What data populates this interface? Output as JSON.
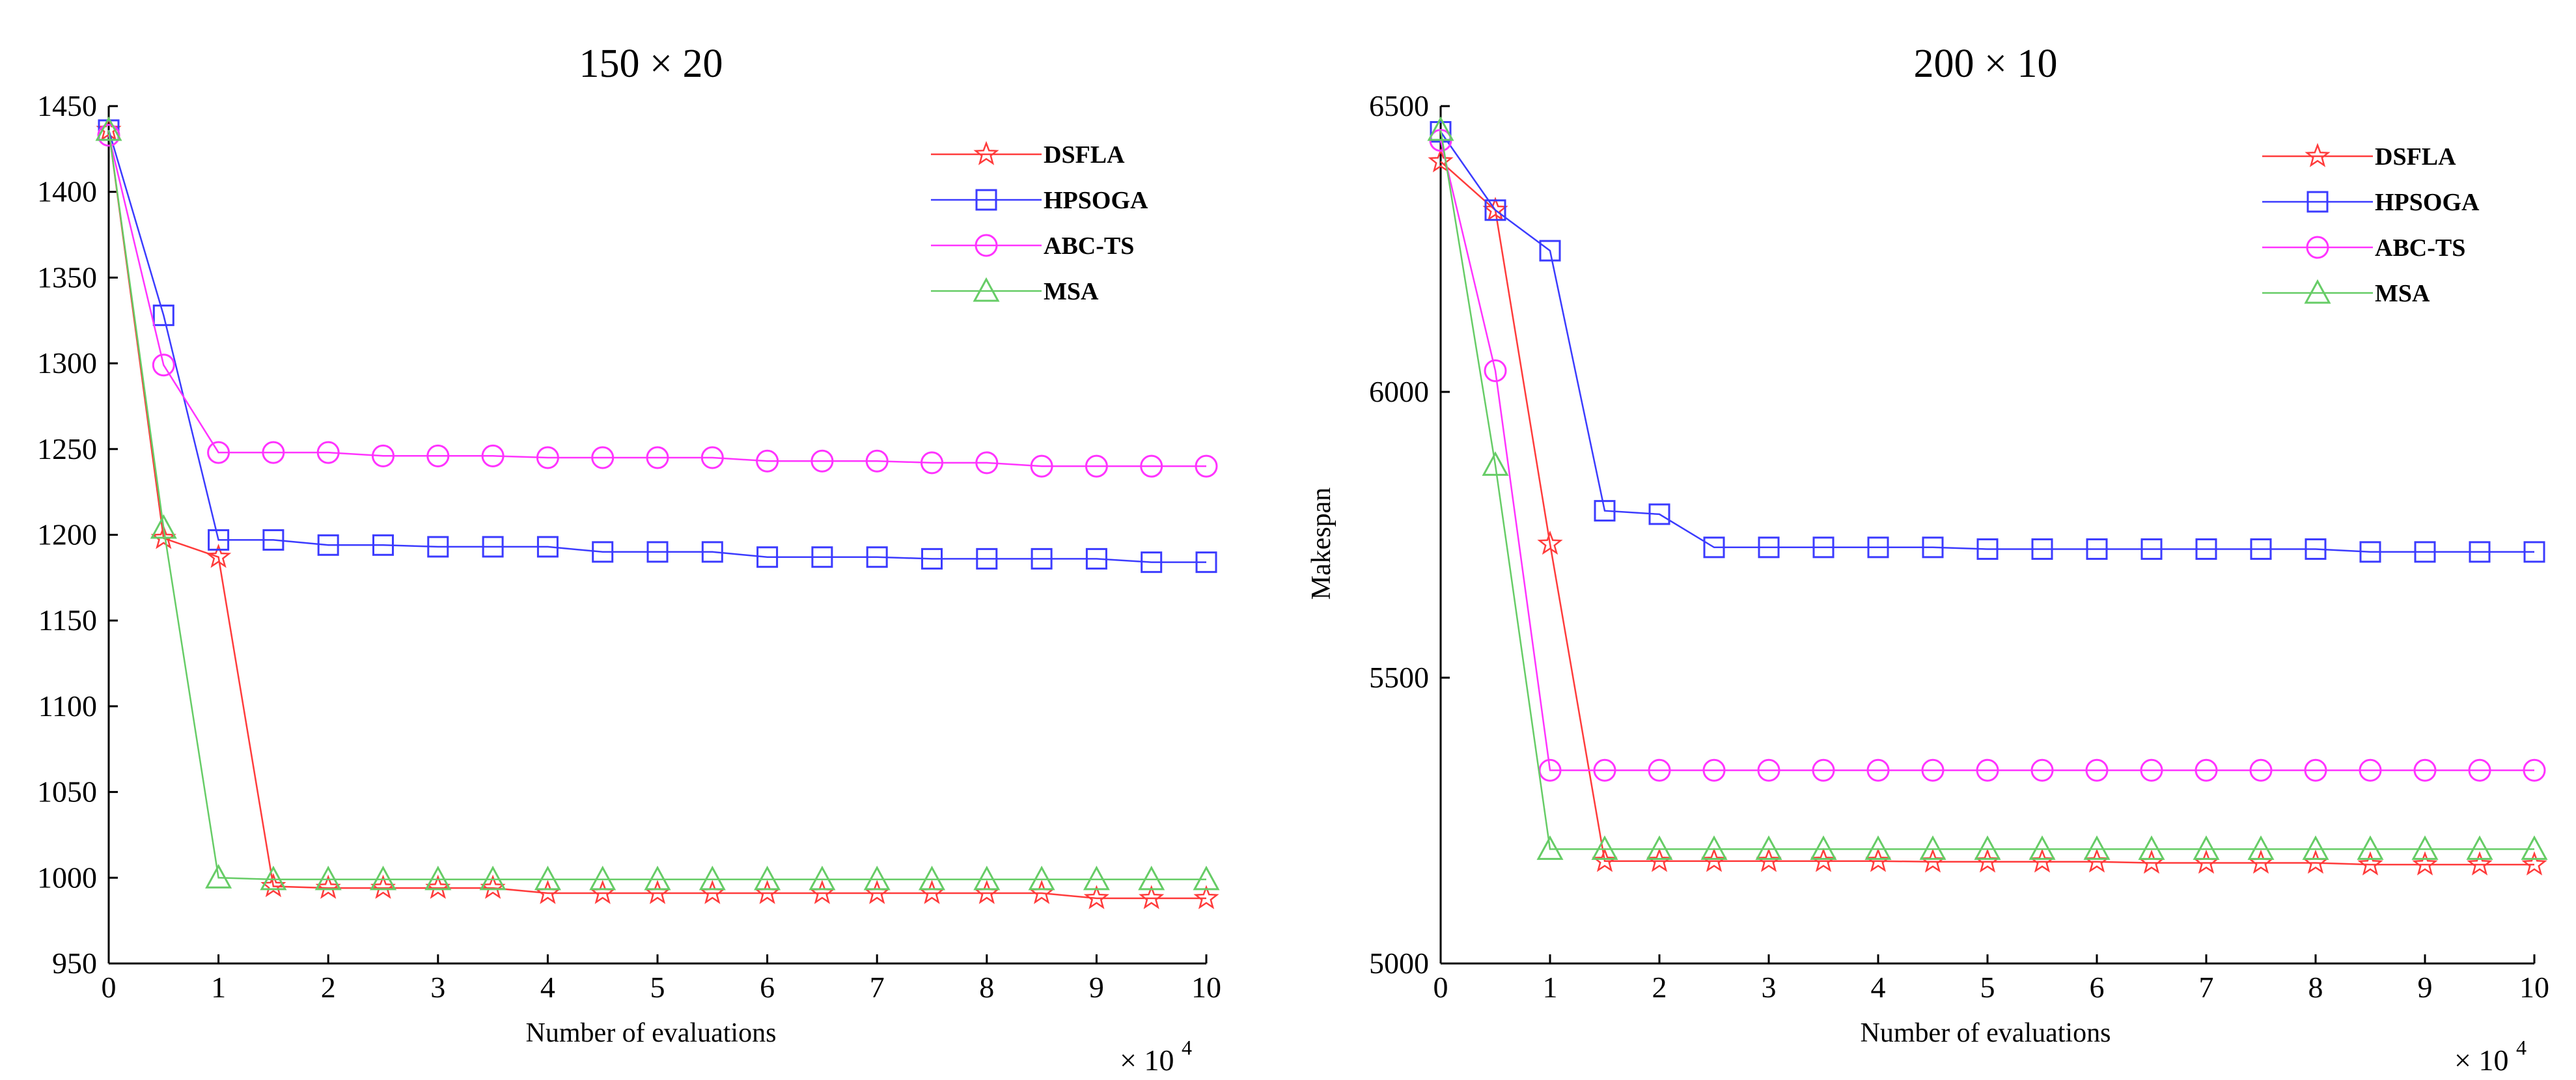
{
  "chart_data": [
    {
      "type": "line",
      "title": "150 × 20",
      "xlabel": "Number of evaluations",
      "ylabel": "",
      "x_multiplier": "× 10",
      "x_multiplier_exp": "4",
      "xlim": [
        0,
        10
      ],
      "ylim": [
        950,
        1450
      ],
      "xticks": [
        "0",
        "1",
        "2",
        "3",
        "4",
        "5",
        "6",
        "7",
        "8",
        "9",
        "10"
      ],
      "yticks": [
        "950",
        "1000",
        "1050",
        "1100",
        "1150",
        "1200",
        "1250",
        "1300",
        "1350",
        "1400",
        "1450"
      ],
      "x": [
        0,
        0.5,
        1,
        1.5,
        2,
        2.5,
        3,
        3.5,
        4,
        4.5,
        5,
        5.5,
        6,
        6.5,
        7,
        7.5,
        8,
        8.5,
        9,
        9.5,
        10
      ],
      "legend_position": "top-right",
      "series": [
        {
          "name": "DSFLA",
          "color": "#ff3b3b",
          "marker": "star",
          "values": [
            1436,
            1198,
            1187,
            995,
            994,
            994,
            994,
            994,
            991,
            991,
            991,
            991,
            991,
            991,
            991,
            991,
            991,
            991,
            988,
            988,
            988
          ]
        },
        {
          "name": "HPSOGA",
          "color": "#3b3bff",
          "marker": "square",
          "values": [
            1436,
            1328,
            1197,
            1197,
            1194,
            1194,
            1193,
            1193,
            1193,
            1190,
            1190,
            1190,
            1187,
            1187,
            1187,
            1186,
            1186,
            1186,
            1186,
            1184,
            1184
          ]
        },
        {
          "name": "ABC-TS",
          "color": "#ff33ff",
          "marker": "circle",
          "values": [
            1433,
            1299,
            1248,
            1248,
            1248,
            1246,
            1246,
            1246,
            1245,
            1245,
            1245,
            1245,
            1243,
            1243,
            1243,
            1242,
            1242,
            1240,
            1240,
            1240,
            1240
          ]
        },
        {
          "name": "MSA",
          "color": "#66cc66",
          "marker": "triangle",
          "values": [
            1436,
            1204,
            1000,
            999,
            999,
            999,
            999,
            999,
            999,
            999,
            999,
            999,
            999,
            999,
            999,
            999,
            999,
            999,
            999,
            999,
            999
          ]
        }
      ]
    },
    {
      "type": "line",
      "title": "200 × 10",
      "xlabel": "Number of evaluations",
      "ylabel": "Makespan",
      "x_multiplier": "× 10",
      "x_multiplier_exp": "4",
      "xlim": [
        0,
        10
      ],
      "ylim": [
        5000,
        6500
      ],
      "xticks": [
        "0",
        "1",
        "2",
        "3",
        "4",
        "5",
        "6",
        "7",
        "8",
        "9",
        "10"
      ],
      "yticks": [
        "5000",
        "5500",
        "6000",
        "6500"
      ],
      "x": [
        0,
        0.5,
        1,
        1.5,
        2,
        2.5,
        3,
        3.5,
        4,
        4.5,
        5,
        5.5,
        6,
        6.5,
        7,
        7.5,
        8,
        8.5,
        9,
        9.5,
        10
      ],
      "legend_position": "top-right",
      "series": [
        {
          "name": "DSFLA",
          "color": "#ff3b3b",
          "marker": "star",
          "values": [
            6403,
            6318,
            5734,
            5179,
            5179,
            5179,
            5179,
            5179,
            5179,
            5178,
            5178,
            5178,
            5178,
            5176,
            5176,
            5176,
            5176,
            5173,
            5173,
            5173,
            5173
          ]
        },
        {
          "name": "HPSOGA",
          "color": "#3b3bff",
          "marker": "square",
          "values": [
            6455,
            6318,
            6247,
            5792,
            5786,
            5728,
            5728,
            5728,
            5728,
            5728,
            5725,
            5725,
            5725,
            5725,
            5725,
            5725,
            5725,
            5720,
            5720,
            5720,
            5720
          ]
        },
        {
          "name": "ABC-TS",
          "color": "#ff33ff",
          "marker": "circle",
          "values": [
            6440,
            6037,
            5338,
            5338,
            5338,
            5338,
            5338,
            5338,
            5338,
            5338,
            5338,
            5338,
            5338,
            5338,
            5338,
            5338,
            5338,
            5338,
            5338,
            5338,
            5338
          ]
        },
        {
          "name": "MSA",
          "color": "#66cc66",
          "marker": "triangle",
          "values": [
            6458,
            5872,
            5200,
            5200,
            5200,
            5200,
            5200,
            5200,
            5200,
            5200,
            5200,
            5200,
            5200,
            5200,
            5200,
            5200,
            5200,
            5200,
            5200,
            5200,
            5200
          ]
        }
      ]
    }
  ]
}
